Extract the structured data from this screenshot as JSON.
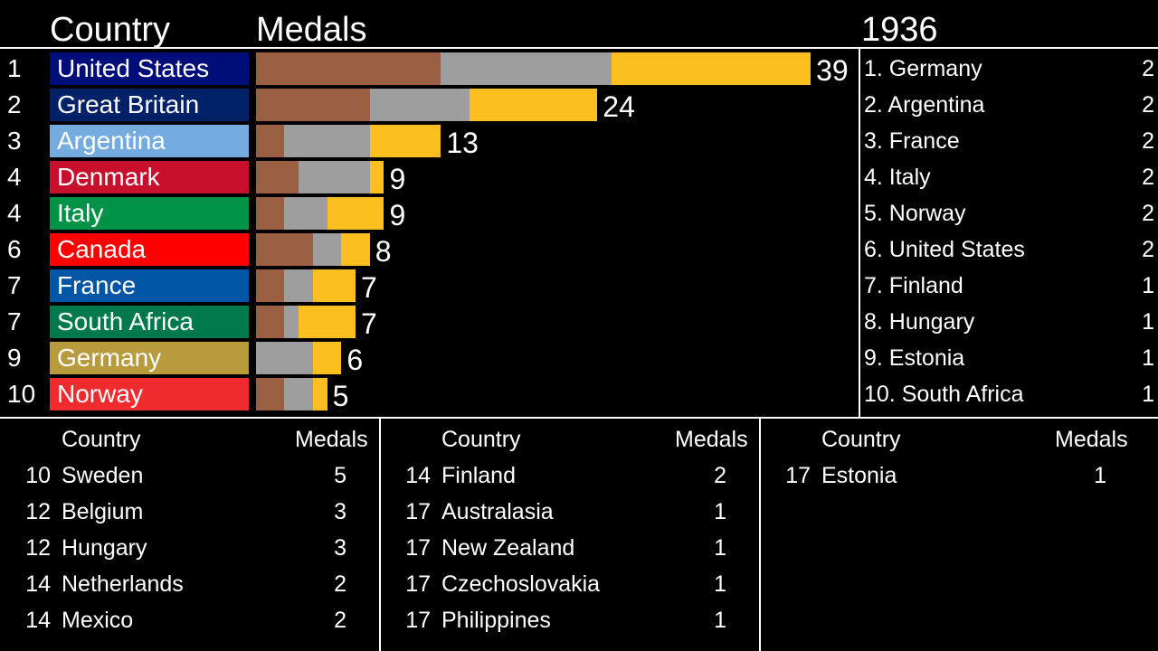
{
  "header": {
    "country_label": "Country",
    "medals_label": "Medals",
    "year": "1936"
  },
  "colors": {
    "bronze": "#9b5f44",
    "silver": "#9e9e9e",
    "gold": "#fdbf1f"
  },
  "chart_data": {
    "type": "bar",
    "stacked": true,
    "title": "Medals",
    "year": "1936",
    "series_names": [
      "Bronze",
      "Silver",
      "Gold"
    ],
    "categories": [
      "United States",
      "Great Britain",
      "Argentina",
      "Denmark",
      "Italy",
      "Canada",
      "France",
      "South Africa",
      "Germany",
      "Norway"
    ],
    "ranks": [
      "1",
      "2",
      "3",
      "4",
      "4",
      "6",
      "7",
      "7",
      "9",
      "10"
    ],
    "box_colors": [
      "#000e7a",
      "#012169",
      "#74acdf",
      "#c8102e",
      "#009246",
      "#ff0000",
      "#0055a4",
      "#007a4d",
      "#b89b3c",
      "#ef2b2d"
    ],
    "bronze": [
      13,
      8,
      2,
      3,
      2,
      4,
      2,
      2,
      0,
      2
    ],
    "silver": [
      12,
      7,
      6,
      5,
      3,
      2,
      2,
      1,
      4,
      2
    ],
    "gold": [
      14,
      9,
      5,
      1,
      4,
      2,
      3,
      4,
      2,
      1
    ],
    "totals": [
      39,
      24,
      13,
      9,
      9,
      8,
      7,
      7,
      6,
      5
    ]
  },
  "right_list": [
    {
      "label": "1. Germany",
      "value": "2"
    },
    {
      "label": "2. Argentina",
      "value": "2"
    },
    {
      "label": "3. France",
      "value": "2"
    },
    {
      "label": "4. Italy",
      "value": "2"
    },
    {
      "label": "5. Norway",
      "value": "2"
    },
    {
      "label": "6. United States",
      "value": "2"
    },
    {
      "label": "7. Finland",
      "value": "1"
    },
    {
      "label": "8. Hungary",
      "value": "1"
    },
    {
      "label": "9. Estonia",
      "value": "1"
    },
    {
      "label": "10. South Africa",
      "value": "1"
    }
  ],
  "tables": [
    {
      "country_label": "Country",
      "medals_label": "Medals",
      "rows": [
        {
          "rank": "10",
          "country": "Sweden",
          "medals": "5"
        },
        {
          "rank": "12",
          "country": "Belgium",
          "medals": "3"
        },
        {
          "rank": "12",
          "country": "Hungary",
          "medals": "3"
        },
        {
          "rank": "14",
          "country": "Netherlands",
          "medals": "2"
        },
        {
          "rank": "14",
          "country": "Mexico",
          "medals": "2"
        }
      ]
    },
    {
      "country_label": "Country",
      "medals_label": "Medals",
      "rows": [
        {
          "rank": "14",
          "country": "Finland",
          "medals": "2"
        },
        {
          "rank": "17",
          "country": "Australasia",
          "medals": "1"
        },
        {
          "rank": "17",
          "country": "New Zealand",
          "medals": "1"
        },
        {
          "rank": "17",
          "country": "Czechoslovakia",
          "medals": "1"
        },
        {
          "rank": "17",
          "country": "Philippines",
          "medals": "1"
        }
      ]
    },
    {
      "country_label": "Country",
      "medals_label": "Medals",
      "rows": [
        {
          "rank": "17",
          "country": "Estonia",
          "medals": "1"
        }
      ]
    }
  ]
}
